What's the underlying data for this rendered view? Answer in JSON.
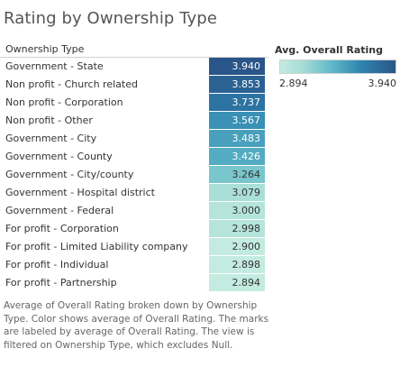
{
  "title": "Rating by Ownership Type",
  "column_header": "Ownership Type",
  "legend": {
    "title": "Avg. Overall Rating",
    "min_label": "2.894",
    "max_label": "3.940",
    "color_low": "#c4ebe0",
    "color_high": "#2a5589"
  },
  "caption": "Average of Overall Rating broken down by Ownership Type.  Color shows average of Overall Rating.  The marks are labeled by average of Overall Rating. The view is filtered on Ownership Type, which excludes Null.",
  "chart_data": {
    "type": "table",
    "title": "Rating by Ownership Type",
    "categories": [
      "Government - State",
      "Non profit - Church related",
      "Non profit - Corporation",
      "Non profit - Other",
      "Government - City",
      "Government - County",
      "Government - City/county",
      "Government - Hospital district",
      "Government - Federal",
      "For profit - Corporation",
      "For profit - Limited Liability company",
      "For profit - Individual",
      "For profit - Partnership"
    ],
    "values": [
      3.94,
      3.853,
      3.737,
      3.567,
      3.483,
      3.426,
      3.264,
      3.079,
      3.0,
      2.998,
      2.9,
      2.898,
      2.894
    ],
    "value_labels": [
      "3.940",
      "3.853",
      "3.737",
      "3.567",
      "3.483",
      "3.426",
      "3.264",
      "3.079",
      "3.000",
      "2.998",
      "2.900",
      "2.898",
      "2.894"
    ],
    "color_range": [
      2.894,
      3.94
    ]
  }
}
